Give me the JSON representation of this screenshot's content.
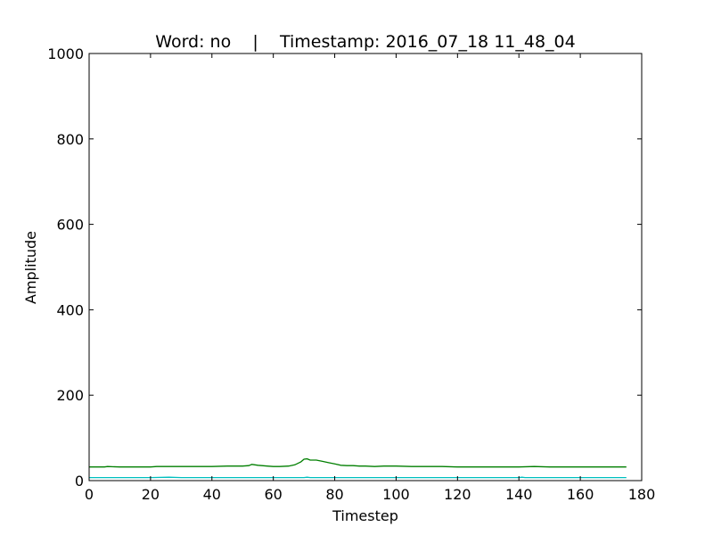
{
  "chart_data": {
    "type": "line",
    "title": "Word: no    |    Timestamp: 2016_07_18 11_48_04",
    "xlabel": "Timestep",
    "ylabel": "Amplitude",
    "xlim": [
      0,
      180
    ],
    "ylim": [
      0,
      1000
    ],
    "xticks": [
      0,
      20,
      40,
      60,
      80,
      100,
      120,
      140,
      160,
      180
    ],
    "yticks": [
      0,
      200,
      400,
      600,
      800,
      1000
    ],
    "grid": false,
    "series": [
      {
        "color": "#007f00",
        "points": [
          [
            0,
            32
          ],
          [
            5,
            32
          ],
          [
            6,
            33
          ],
          [
            10,
            32
          ],
          [
            15,
            32
          ],
          [
            20,
            32
          ],
          [
            22,
            33
          ],
          [
            25,
            33
          ],
          [
            30,
            33
          ],
          [
            35,
            33
          ],
          [
            40,
            33
          ],
          [
            45,
            34
          ],
          [
            50,
            34
          ],
          [
            52,
            35
          ],
          [
            53,
            38
          ],
          [
            55,
            36
          ],
          [
            58,
            34
          ],
          [
            60,
            33
          ],
          [
            62,
            33
          ],
          [
            65,
            34
          ],
          [
            67,
            37
          ],
          [
            69,
            44
          ],
          [
            70,
            50
          ],
          [
            71,
            51
          ],
          [
            72,
            48
          ],
          [
            74,
            48
          ],
          [
            76,
            45
          ],
          [
            78,
            42
          ],
          [
            80,
            39
          ],
          [
            82,
            36
          ],
          [
            84,
            35
          ],
          [
            86,
            35
          ],
          [
            88,
            34
          ],
          [
            90,
            34
          ],
          [
            93,
            33
          ],
          [
            96,
            34
          ],
          [
            100,
            34
          ],
          [
            105,
            33
          ],
          [
            110,
            33
          ],
          [
            115,
            33
          ],
          [
            120,
            32
          ],
          [
            125,
            32
          ],
          [
            130,
            32
          ],
          [
            135,
            32
          ],
          [
            140,
            32
          ],
          [
            145,
            33
          ],
          [
            150,
            32
          ],
          [
            155,
            32
          ],
          [
            160,
            32
          ],
          [
            165,
            32
          ],
          [
            170,
            32
          ],
          [
            175,
            32
          ]
        ]
      },
      {
        "color": "#00bfbf",
        "points": [
          [
            0,
            7
          ],
          [
            20,
            7
          ],
          [
            26,
            8
          ],
          [
            30,
            7
          ],
          [
            50,
            7
          ],
          [
            70,
            7
          ],
          [
            71,
            8
          ],
          [
            72,
            7
          ],
          [
            100,
            7
          ],
          [
            140,
            7
          ],
          [
            141,
            8
          ],
          [
            142,
            7
          ],
          [
            175,
            7
          ]
        ]
      }
    ]
  }
}
